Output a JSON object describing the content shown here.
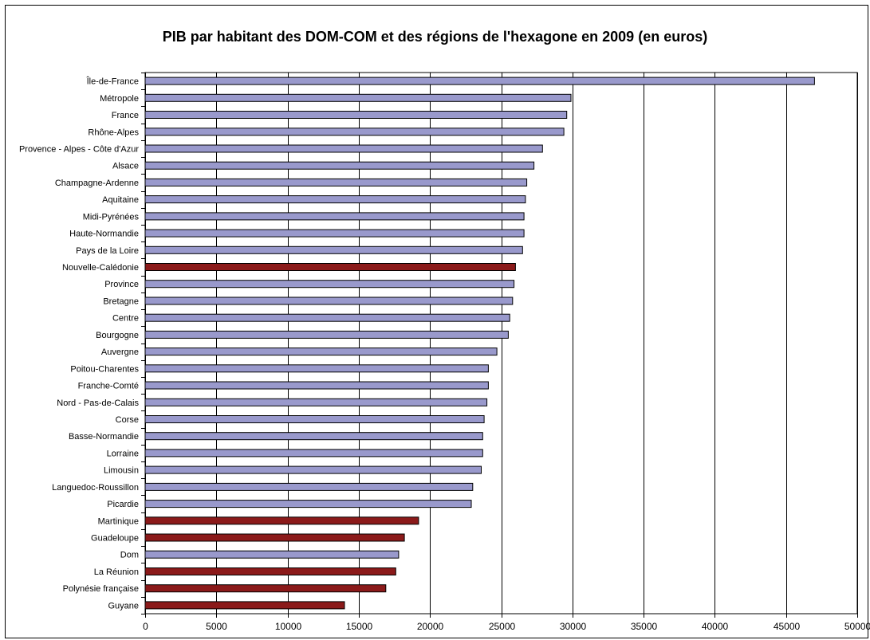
{
  "chart_data": {
    "type": "bar",
    "orientation": "horizontal",
    "title": "PIB par habitant des DOM-COM et des régions de l'hexagone en 2009 (en euros)",
    "xlabel": "",
    "ylabel": "",
    "xlim": [
      0,
      50000
    ],
    "xticks": [
      0,
      5000,
      10000,
      15000,
      20000,
      25000,
      30000,
      35000,
      40000,
      45000,
      50000
    ],
    "grid": "vertical",
    "legend": "none",
    "colors": {
      "region": "#9999cc",
      "domcom": "#8b1a1a",
      "outline": "#000000"
    },
    "categories": [
      "Île-de-France",
      "Métropole",
      "France",
      "Rhône-Alpes",
      "Provence - Alpes - Côte d'Azur",
      "Alsace",
      "Champagne-Ardenne",
      "Aquitaine",
      "Midi-Pyrénées",
      "Haute-Normandie",
      "Pays de la Loire",
      "Nouvelle-Calédonie",
      "Province",
      "Bretagne",
      "Centre",
      "Bourgogne",
      "Auvergne",
      "Poitou-Charentes",
      "Franche-Comté",
      "Nord - Pas-de-Calais",
      "Corse",
      "Basse-Normandie",
      "Lorraine",
      "Limousin",
      "Languedoc-Roussillon",
      "Picardie",
      "Martinique",
      "Guadeloupe",
      "Dom",
      "La Réunion",
      "Polynésie française",
      "Guyane"
    ],
    "values": [
      47000,
      29900,
      29600,
      29400,
      27900,
      27300,
      26800,
      26700,
      26600,
      26600,
      26500,
      26000,
      25900,
      25800,
      25600,
      25500,
      24700,
      24100,
      24100,
      24000,
      23800,
      23700,
      23700,
      23600,
      23000,
      22900,
      19200,
      18200,
      17800,
      17600,
      16900,
      14000
    ],
    "groups": [
      "region",
      "region",
      "region",
      "region",
      "region",
      "region",
      "region",
      "region",
      "region",
      "region",
      "region",
      "domcom",
      "region",
      "region",
      "region",
      "region",
      "region",
      "region",
      "region",
      "region",
      "region",
      "region",
      "region",
      "region",
      "region",
      "region",
      "domcom",
      "domcom",
      "region",
      "domcom",
      "domcom",
      "domcom"
    ]
  }
}
